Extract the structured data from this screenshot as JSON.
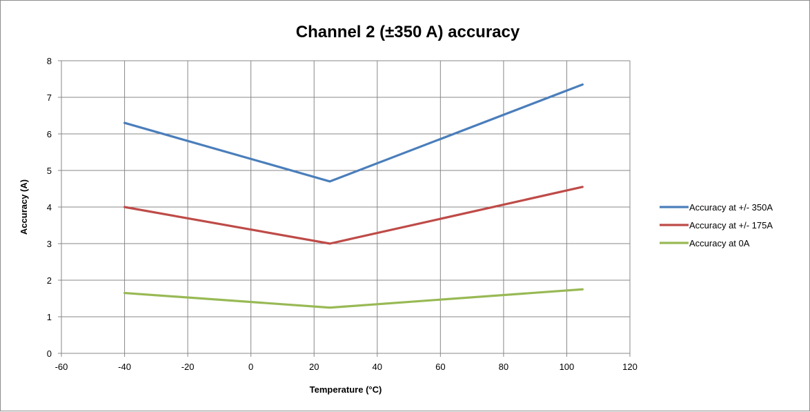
{
  "chart_data": {
    "type": "line",
    "title": "Channel 2  (±350 A) accuracy",
    "xlabel": "Temperature (°C)",
    "ylabel": "Accuracy (A)",
    "xlim": [
      -60,
      120
    ],
    "ylim": [
      0,
      8
    ],
    "x_ticks": [
      "-60",
      "-40",
      "-20",
      "0",
      "20",
      "40",
      "60",
      "80",
      "100",
      "120"
    ],
    "y_ticks": [
      "0",
      "1",
      "2",
      "3",
      "4",
      "5",
      "6",
      "7",
      "8"
    ],
    "grid": true,
    "legend_position": "right",
    "x": [
      -40,
      25,
      105
    ],
    "series": [
      {
        "name": "Accuracy at +/- 350A",
        "color": "#4a7ebb",
        "values": [
          6.3,
          4.7,
          7.35
        ]
      },
      {
        "name": "Accuracy at +/- 175A",
        "color": "#be4b48",
        "values": [
          4.0,
          3.0,
          4.55
        ]
      },
      {
        "name": "Accuracy at 0A",
        "color": "#98b954",
        "values": [
          1.65,
          1.25,
          1.75
        ]
      }
    ]
  }
}
